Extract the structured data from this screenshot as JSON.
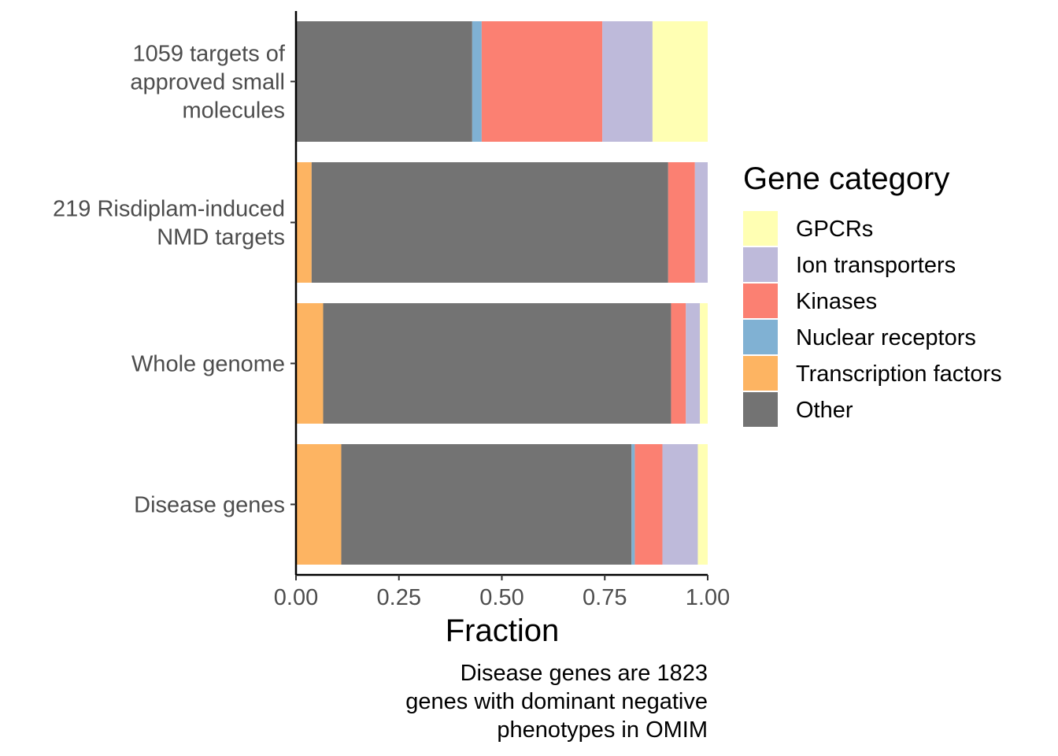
{
  "chart_data": {
    "type": "bar",
    "orientation": "horizontal",
    "stacked": true,
    "categories": [
      "1059 targets of approved small molecules",
      "219 Risdiplam-induced NMD targets",
      "Whole genome",
      "Disease genes"
    ],
    "category_lines": [
      [
        "1059 targets of",
        "approved small",
        "molecules"
      ],
      [
        "219 Risdiplam-induced",
        "NMD targets"
      ],
      [
        "Whole genome"
      ],
      [
        "Disease genes"
      ]
    ],
    "stack_order": [
      "Transcription factors",
      "Other",
      "Nuclear receptors",
      "Kinases",
      "Ion transporters",
      "GPCRs"
    ],
    "series": [
      {
        "name": "Transcription factors",
        "color": "#FDB462",
        "values": [
          0.0,
          0.038,
          0.066,
          0.11
        ]
      },
      {
        "name": "Other",
        "color": "#737373",
        "values": [
          0.428,
          0.866,
          0.845,
          0.705
        ]
      },
      {
        "name": "Nuclear receptors",
        "color": "#80B1D3",
        "values": [
          0.023,
          0.0,
          0.0,
          0.008
        ]
      },
      {
        "name": "Kinases",
        "color": "#FB8072",
        "values": [
          0.293,
          0.065,
          0.036,
          0.067
        ]
      },
      {
        "name": "Ion transporters",
        "color": "#BEBADA",
        "values": [
          0.122,
          0.031,
          0.034,
          0.086
        ]
      },
      {
        "name": "GPCRs",
        "color": "#FFFFB3",
        "values": [
          0.134,
          0.0,
          0.019,
          0.024
        ]
      }
    ],
    "xlabel": "Fraction",
    "ylabel": "",
    "xlim": [
      0,
      1
    ],
    "x_ticks": [
      "0.00",
      "0.25",
      "0.50",
      "0.75",
      "1.00"
    ],
    "legend": {
      "title": "Gene category",
      "position": "right",
      "entries": [
        "GPCRs",
        "Ion transporters",
        "Kinases",
        "Nuclear receptors",
        "Transcription factors",
        "Other"
      ]
    },
    "caption_lines": [
      "Disease genes are 1823",
      "genes with dominant negative",
      "phenotypes in OMIM"
    ],
    "grid": false
  }
}
